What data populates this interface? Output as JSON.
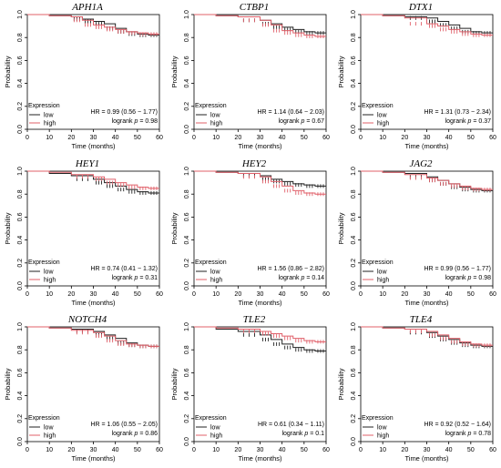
{
  "colors": {
    "low": "#222222",
    "high": "#e0606a",
    "axis": "#000000"
  },
  "axes": {
    "xlabel": "Time (months)",
    "ylabel": "Probability",
    "xticks": [
      "0",
      "10",
      "20",
      "30",
      "40",
      "50",
      "60"
    ],
    "yticks": [
      "0.0",
      "0.2",
      "0.4",
      "0.6",
      "0.8",
      "1.0"
    ]
  },
  "legend": {
    "title": "Expression",
    "low": "low",
    "high": "high"
  },
  "chart_data": [
    {
      "type": "line",
      "title": "APH1A",
      "hr": "HR = 0.99 (0.56 − 1.77)",
      "logrank_label": "logrank ",
      "logrank_p": "p",
      "logrank_value": " = 0.98",
      "xlim": [
        0,
        60
      ],
      "ylim": [
        0,
        1
      ],
      "legend_position": "bottom-left",
      "series": [
        {
          "name": "low",
          "x": [
            0,
            10,
            20,
            25,
            30,
            35,
            40,
            45,
            50,
            55,
            60
          ],
          "y": [
            1.0,
            0.99,
            0.98,
            0.96,
            0.94,
            0.92,
            0.88,
            0.85,
            0.83,
            0.82,
            0.82
          ]
        },
        {
          "name": "high",
          "x": [
            0,
            10,
            20,
            25,
            30,
            35,
            40,
            45,
            50,
            55,
            60
          ],
          "y": [
            1.0,
            0.99,
            0.98,
            0.95,
            0.91,
            0.89,
            0.87,
            0.85,
            0.84,
            0.83,
            0.83
          ]
        }
      ]
    },
    {
      "type": "line",
      "title": "CTBP1",
      "hr": "HR = 1.14 (0.64 − 2.03)",
      "logrank_label": "logrank ",
      "logrank_p": "p",
      "logrank_value": " = 0.67",
      "xlim": [
        0,
        60
      ],
      "ylim": [
        0,
        1
      ],
      "legend_position": "bottom-left",
      "series": [
        {
          "name": "low",
          "x": [
            0,
            10,
            20,
            30,
            35,
            40,
            45,
            50,
            55,
            60
          ],
          "y": [
            1.0,
            0.99,
            0.98,
            0.95,
            0.92,
            0.89,
            0.87,
            0.85,
            0.84,
            0.84
          ]
        },
        {
          "name": "high",
          "x": [
            0,
            10,
            20,
            30,
            35,
            40,
            45,
            50,
            55,
            60
          ],
          "y": [
            1.0,
            0.99,
            0.98,
            0.95,
            0.91,
            0.86,
            0.84,
            0.82,
            0.81,
            0.81
          ]
        }
      ]
    },
    {
      "type": "line",
      "title": "DTX1",
      "hr": "HR = 1.31 (0.73 − 2.34)",
      "logrank_label": "logrank ",
      "logrank_p": "p",
      "logrank_value": " = 0.37",
      "xlim": [
        0,
        60
      ],
      "ylim": [
        0,
        1
      ],
      "legend_position": "bottom-left",
      "series": [
        {
          "name": "low",
          "x": [
            0,
            10,
            20,
            30,
            35,
            40,
            45,
            50,
            55,
            60
          ],
          "y": [
            1.0,
            0.99,
            0.98,
            0.97,
            0.94,
            0.91,
            0.88,
            0.85,
            0.84,
            0.84
          ]
        },
        {
          "name": "high",
          "x": [
            0,
            10,
            20,
            30,
            35,
            40,
            45,
            50,
            55,
            60
          ],
          "y": [
            1.0,
            0.99,
            0.97,
            0.92,
            0.9,
            0.87,
            0.85,
            0.83,
            0.82,
            0.82
          ]
        }
      ]
    },
    {
      "type": "line",
      "title": "HEY1",
      "hr": "HR = 0.74 (0.41 − 1.32)",
      "logrank_label": "logrank ",
      "logrank_p": "p",
      "logrank_value": " = 0.31",
      "xlim": [
        0,
        60
      ],
      "ylim": [
        0,
        1
      ],
      "legend_position": "bottom-left",
      "series": [
        {
          "name": "low",
          "x": [
            0,
            10,
            20,
            30,
            35,
            40,
            45,
            50,
            55,
            60
          ],
          "y": [
            1.0,
            0.98,
            0.96,
            0.93,
            0.9,
            0.87,
            0.84,
            0.82,
            0.81,
            0.81
          ]
        },
        {
          "name": "high",
          "x": [
            0,
            10,
            20,
            30,
            35,
            40,
            45,
            50,
            55,
            60
          ],
          "y": [
            1.0,
            0.99,
            0.97,
            0.95,
            0.93,
            0.9,
            0.88,
            0.86,
            0.85,
            0.85
          ]
        }
      ]
    },
    {
      "type": "line",
      "title": "HEY2",
      "hr": "HR = 1.56 (0.86 − 2.82)",
      "logrank_label": "logrank ",
      "logrank_p": "p",
      "logrank_value": " = 0.14",
      "xlim": [
        0,
        60
      ],
      "ylim": [
        0,
        1
      ],
      "legend_position": "bottom-left",
      "series": [
        {
          "name": "low",
          "x": [
            0,
            10,
            20,
            30,
            35,
            40,
            45,
            50,
            55,
            60
          ],
          "y": [
            1.0,
            0.99,
            0.98,
            0.96,
            0.93,
            0.91,
            0.89,
            0.88,
            0.87,
            0.87
          ]
        },
        {
          "name": "high",
          "x": [
            0,
            10,
            20,
            30,
            35,
            40,
            45,
            50,
            55,
            60
          ],
          "y": [
            1.0,
            0.99,
            0.98,
            0.95,
            0.91,
            0.87,
            0.83,
            0.81,
            0.8,
            0.8
          ]
        }
      ]
    },
    {
      "type": "line",
      "title": "JAG2",
      "hr": "HR = 0.99 (0.56 − 1.77)",
      "logrank_label": "logrank ",
      "logrank_p": "p",
      "logrank_value": " = 0.98",
      "xlim": [
        0,
        60
      ],
      "ylim": [
        0,
        1
      ],
      "legend_position": "bottom-left",
      "series": [
        {
          "name": "low",
          "x": [
            0,
            10,
            20,
            30,
            35,
            40,
            45,
            50,
            55,
            60
          ],
          "y": [
            1.0,
            0.99,
            0.98,
            0.95,
            0.92,
            0.89,
            0.86,
            0.84,
            0.83,
            0.83
          ]
        },
        {
          "name": "high",
          "x": [
            0,
            10,
            20,
            30,
            35,
            40,
            45,
            50,
            55,
            60
          ],
          "y": [
            1.0,
            0.99,
            0.97,
            0.94,
            0.92,
            0.89,
            0.87,
            0.85,
            0.84,
            0.84
          ]
        }
      ]
    },
    {
      "type": "line",
      "title": "NOTCH4",
      "hr": "HR = 1.06 (0.55 − 2.05)",
      "logrank_label": "logrank ",
      "logrank_p": "p",
      "logrank_value": " = 0.86",
      "xlim": [
        0,
        60
      ],
      "ylim": [
        0,
        1
      ],
      "legend_position": "bottom-left",
      "series": [
        {
          "name": "low",
          "x": [
            0,
            10,
            20,
            30,
            35,
            40,
            45,
            50,
            55,
            60
          ],
          "y": [
            1.0,
            0.99,
            0.98,
            0.96,
            0.93,
            0.9,
            0.86,
            0.84,
            0.83,
            0.83
          ]
        },
        {
          "name": "high",
          "x": [
            0,
            10,
            20,
            30,
            35,
            40,
            45,
            50,
            55,
            60
          ],
          "y": [
            1.0,
            0.99,
            0.97,
            0.95,
            0.92,
            0.88,
            0.85,
            0.84,
            0.83,
            0.83
          ]
        }
      ]
    },
    {
      "type": "line",
      "title": "TLE2",
      "hr": "HR = 0.61 (0.34 − 1.11)",
      "logrank_label": "logrank ",
      "logrank_p": "p",
      "logrank_value": " = 0.1",
      "xlim": [
        0,
        60
      ],
      "ylim": [
        0,
        1
      ],
      "legend_position": "bottom-left",
      "series": [
        {
          "name": "low",
          "x": [
            0,
            10,
            20,
            30,
            35,
            40,
            45,
            50,
            55,
            60
          ],
          "y": [
            1.0,
            0.98,
            0.96,
            0.93,
            0.89,
            0.85,
            0.82,
            0.8,
            0.79,
            0.79
          ]
        },
        {
          "name": "high",
          "x": [
            0,
            10,
            20,
            30,
            35,
            40,
            45,
            50,
            55,
            60
          ],
          "y": [
            1.0,
            0.99,
            0.98,
            0.96,
            0.94,
            0.92,
            0.9,
            0.88,
            0.87,
            0.87
          ]
        }
      ]
    },
    {
      "type": "line",
      "title": "TLE4",
      "hr": "HR = 0.92 (0.52 − 1.64)",
      "logrank_label": "logrank ",
      "logrank_p": "p",
      "logrank_value": " = 0.78",
      "xlim": [
        0,
        60
      ],
      "ylim": [
        0,
        1
      ],
      "legend_position": "bottom-left",
      "series": [
        {
          "name": "low",
          "x": [
            0,
            10,
            20,
            30,
            35,
            40,
            45,
            50,
            55,
            60
          ],
          "y": [
            1.0,
            0.99,
            0.98,
            0.95,
            0.92,
            0.89,
            0.86,
            0.84,
            0.83,
            0.83
          ]
        },
        {
          "name": "high",
          "x": [
            0,
            10,
            20,
            30,
            35,
            40,
            45,
            50,
            55,
            60
          ],
          "y": [
            1.0,
            0.99,
            0.98,
            0.96,
            0.93,
            0.9,
            0.87,
            0.85,
            0.84,
            0.84
          ]
        }
      ]
    }
  ]
}
